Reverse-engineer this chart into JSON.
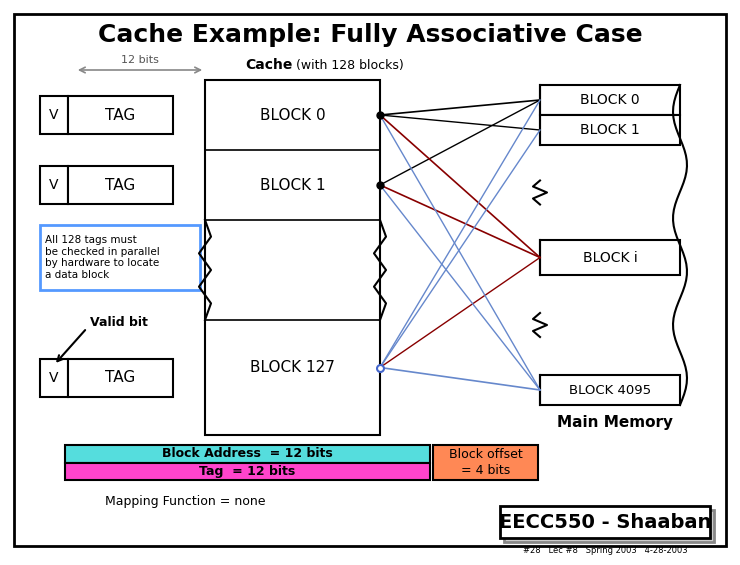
{
  "title": "Cache Example: Fully Associative Case",
  "bg_color": "#ffffff",
  "cache_label_bold": "Cache",
  "cache_label_normal": " (with 128 blocks)",
  "main_memory_label": "Main Memory",
  "valid_bit_label": "Valid bit",
  "mapping_func_label": "Mapping Function = none",
  "eecc_label": "EECC550 - Shaaban",
  "eecc_sublabel": "#28   Lec #8   Spring 2003   4-28-2003",
  "block_address_label": "Block Address  = 12 bits",
  "tag_label": "Tag  = 12 bits",
  "block_offset_label": "Block offset\n= 4 bits",
  "block_address_color": "#55dddd",
  "tag_color": "#ff44cc",
  "block_offset_color": "#ff8855",
  "note_box_color": "#5599ff",
  "note_text": "All 128 tags must\nbe checked in parallel\nby hardware to locate\na data block",
  "bits12_label": "12 bits"
}
